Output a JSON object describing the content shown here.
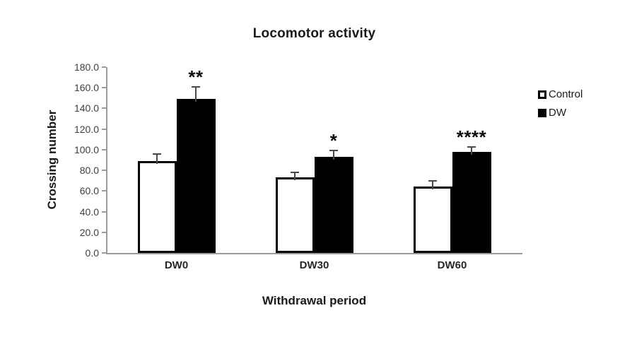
{
  "chart_data": {
    "type": "bar",
    "title": "Locomotor activity",
    "xlabel": "Withdrawal period",
    "ylabel": "Crossing number",
    "categories": [
      "DW0",
      "DW30",
      "DW60"
    ],
    "series": [
      {
        "name": "Control",
        "fill": "#ffffff",
        "border": "#000000",
        "values": [
          89,
          73,
          64
        ],
        "errors": [
          7,
          5,
          6
        ]
      },
      {
        "name": "DW",
        "fill": "#000000",
        "border": "#000000",
        "values": [
          149,
          93,
          98
        ],
        "errors": [
          12,
          6,
          5
        ],
        "significance": [
          "**",
          "*",
          "****"
        ]
      }
    ],
    "ylim": [
      0,
      180
    ],
    "ytick_step": 20,
    "ytick_labels": [
      "0.0",
      "20.0",
      "40.0",
      "60.0",
      "80.0",
      "100.0",
      "120.0",
      "140.0",
      "160.0",
      "180.0"
    ],
    "grid": false,
    "legend_position": "right",
    "error_bars": "upper"
  },
  "colors": {
    "axis": "#9b9b9b",
    "error_bar": "#4a4a4a",
    "bar_dw": "#000000",
    "bar_control": "#ffffff",
    "text": "#1a1a1a",
    "background": "#ffffff"
  }
}
